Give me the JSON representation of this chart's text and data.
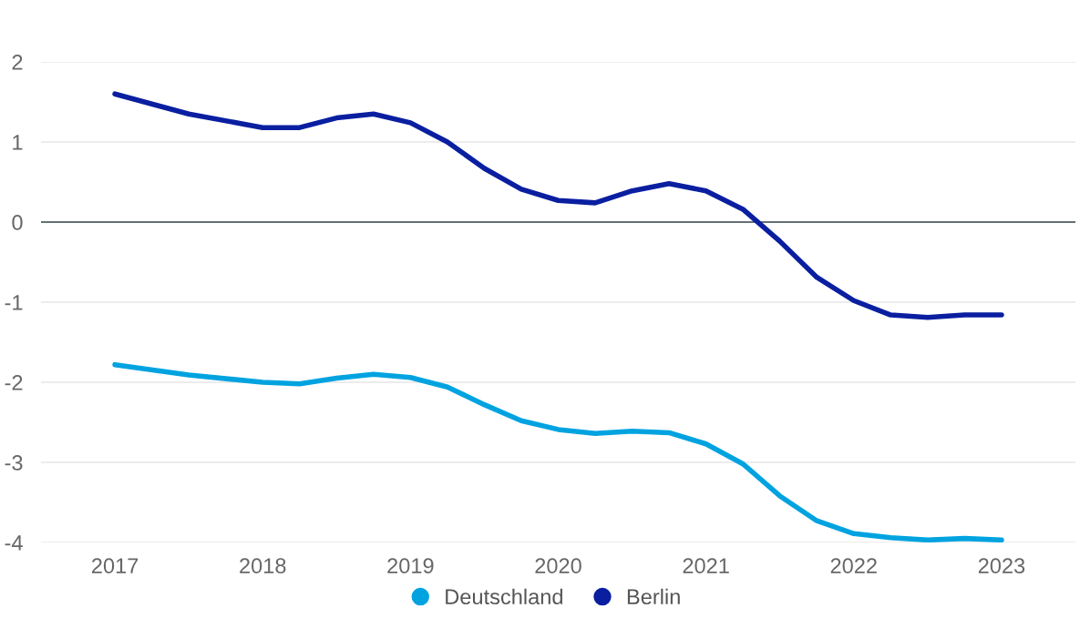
{
  "chart_data": {
    "type": "line",
    "x": [
      2017,
      2017.5,
      2018,
      2018.25,
      2018.5,
      2018.75,
      2019,
      2019.25,
      2019.5,
      2019.75,
      2020,
      2020.25,
      2020.5,
      2020.75,
      2021,
      2021.25,
      2021.5,
      2021.75,
      2022,
      2022.25,
      2022.5,
      2022.75,
      2023
    ],
    "series": [
      {
        "name": "Deutschland",
        "color": "#00a3e0",
        "values": [
          -1.78,
          -1.91,
          -2.0,
          -2.02,
          -1.95,
          -1.9,
          -1.94,
          -2.06,
          -2.28,
          -2.48,
          -2.59,
          -2.64,
          -2.61,
          -2.63,
          -2.77,
          -3.02,
          -3.42,
          -3.73,
          -3.89,
          -3.94,
          -3.97,
          -3.95,
          -3.97
        ]
      },
      {
        "name": "Berlin",
        "color": "#0a1fa0",
        "values": [
          1.6,
          1.35,
          1.18,
          1.18,
          1.3,
          1.35,
          1.24,
          1.0,
          0.67,
          0.41,
          0.27,
          0.24,
          0.39,
          0.48,
          0.39,
          0.16,
          -0.24,
          -0.69,
          -0.98,
          -1.16,
          -1.19,
          -1.16,
          -1.16
        ]
      }
    ],
    "xlim": [
      2016.5,
      2023.5
    ],
    "xticks": [
      2017,
      2018,
      2019,
      2020,
      2021,
      2022,
      2023
    ],
    "ylim": [
      -4,
      2
    ],
    "yticks": [
      -4,
      -3,
      -2,
      -1,
      0,
      1,
      2
    ],
    "grid": "y",
    "legend": "bottom",
    "marker": "none",
    "line_style": "solid",
    "ref_lines": [
      {
        "axis": "y",
        "value": 0,
        "color": "#37474f"
      }
    ]
  }
}
